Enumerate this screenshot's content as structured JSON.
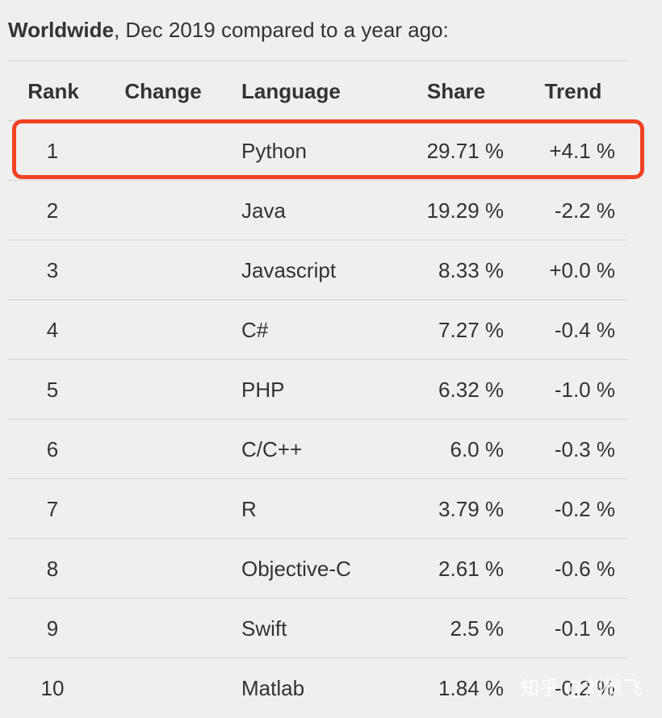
{
  "heading": {
    "bold": "Worldwide",
    "rest": ", Dec 2019 compared to a year ago:"
  },
  "table": {
    "columns": [
      "Rank",
      "Change",
      "Language",
      "Share",
      "Trend"
    ],
    "rows": [
      {
        "rank": "1",
        "change": "",
        "language": "Python",
        "share": "29.71 %",
        "trend": "+4.1 %"
      },
      {
        "rank": "2",
        "change": "",
        "language": "Java",
        "share": "19.29 %",
        "trend": "-2.2 %"
      },
      {
        "rank": "3",
        "change": "",
        "language": "Javascript",
        "share": "8.33 %",
        "trend": "+0.0 %"
      },
      {
        "rank": "4",
        "change": "",
        "language": "C#",
        "share": "7.27 %",
        "trend": "-0.4 %"
      },
      {
        "rank": "5",
        "change": "",
        "language": "PHP",
        "share": "6.32 %",
        "trend": "-1.0 %"
      },
      {
        "rank": "6",
        "change": "",
        "language": "C/C++",
        "share": "6.0 %",
        "trend": "-0.3 %"
      },
      {
        "rank": "7",
        "change": "",
        "language": "R",
        "share": "3.79 %",
        "trend": "-0.2 %"
      },
      {
        "rank": "8",
        "change": "",
        "language": "Objective-C",
        "share": "2.61 %",
        "trend": "-0.6 %"
      },
      {
        "rank": "9",
        "change": "",
        "language": "Swift",
        "share": "2.5 %",
        "trend": "-0.1 %"
      },
      {
        "rank": "10",
        "change": "",
        "language": "Matlab",
        "share": "1.84 %",
        "trend": "-0.2 %"
      }
    ]
  },
  "highlight": {
    "row": "1",
    "color": "#ef4123"
  },
  "watermark": {
    "text": "知乎 @刘枫飞"
  },
  "colors": {
    "background": "#efefef",
    "text": "#333333",
    "divider": "#d6d6d6"
  }
}
